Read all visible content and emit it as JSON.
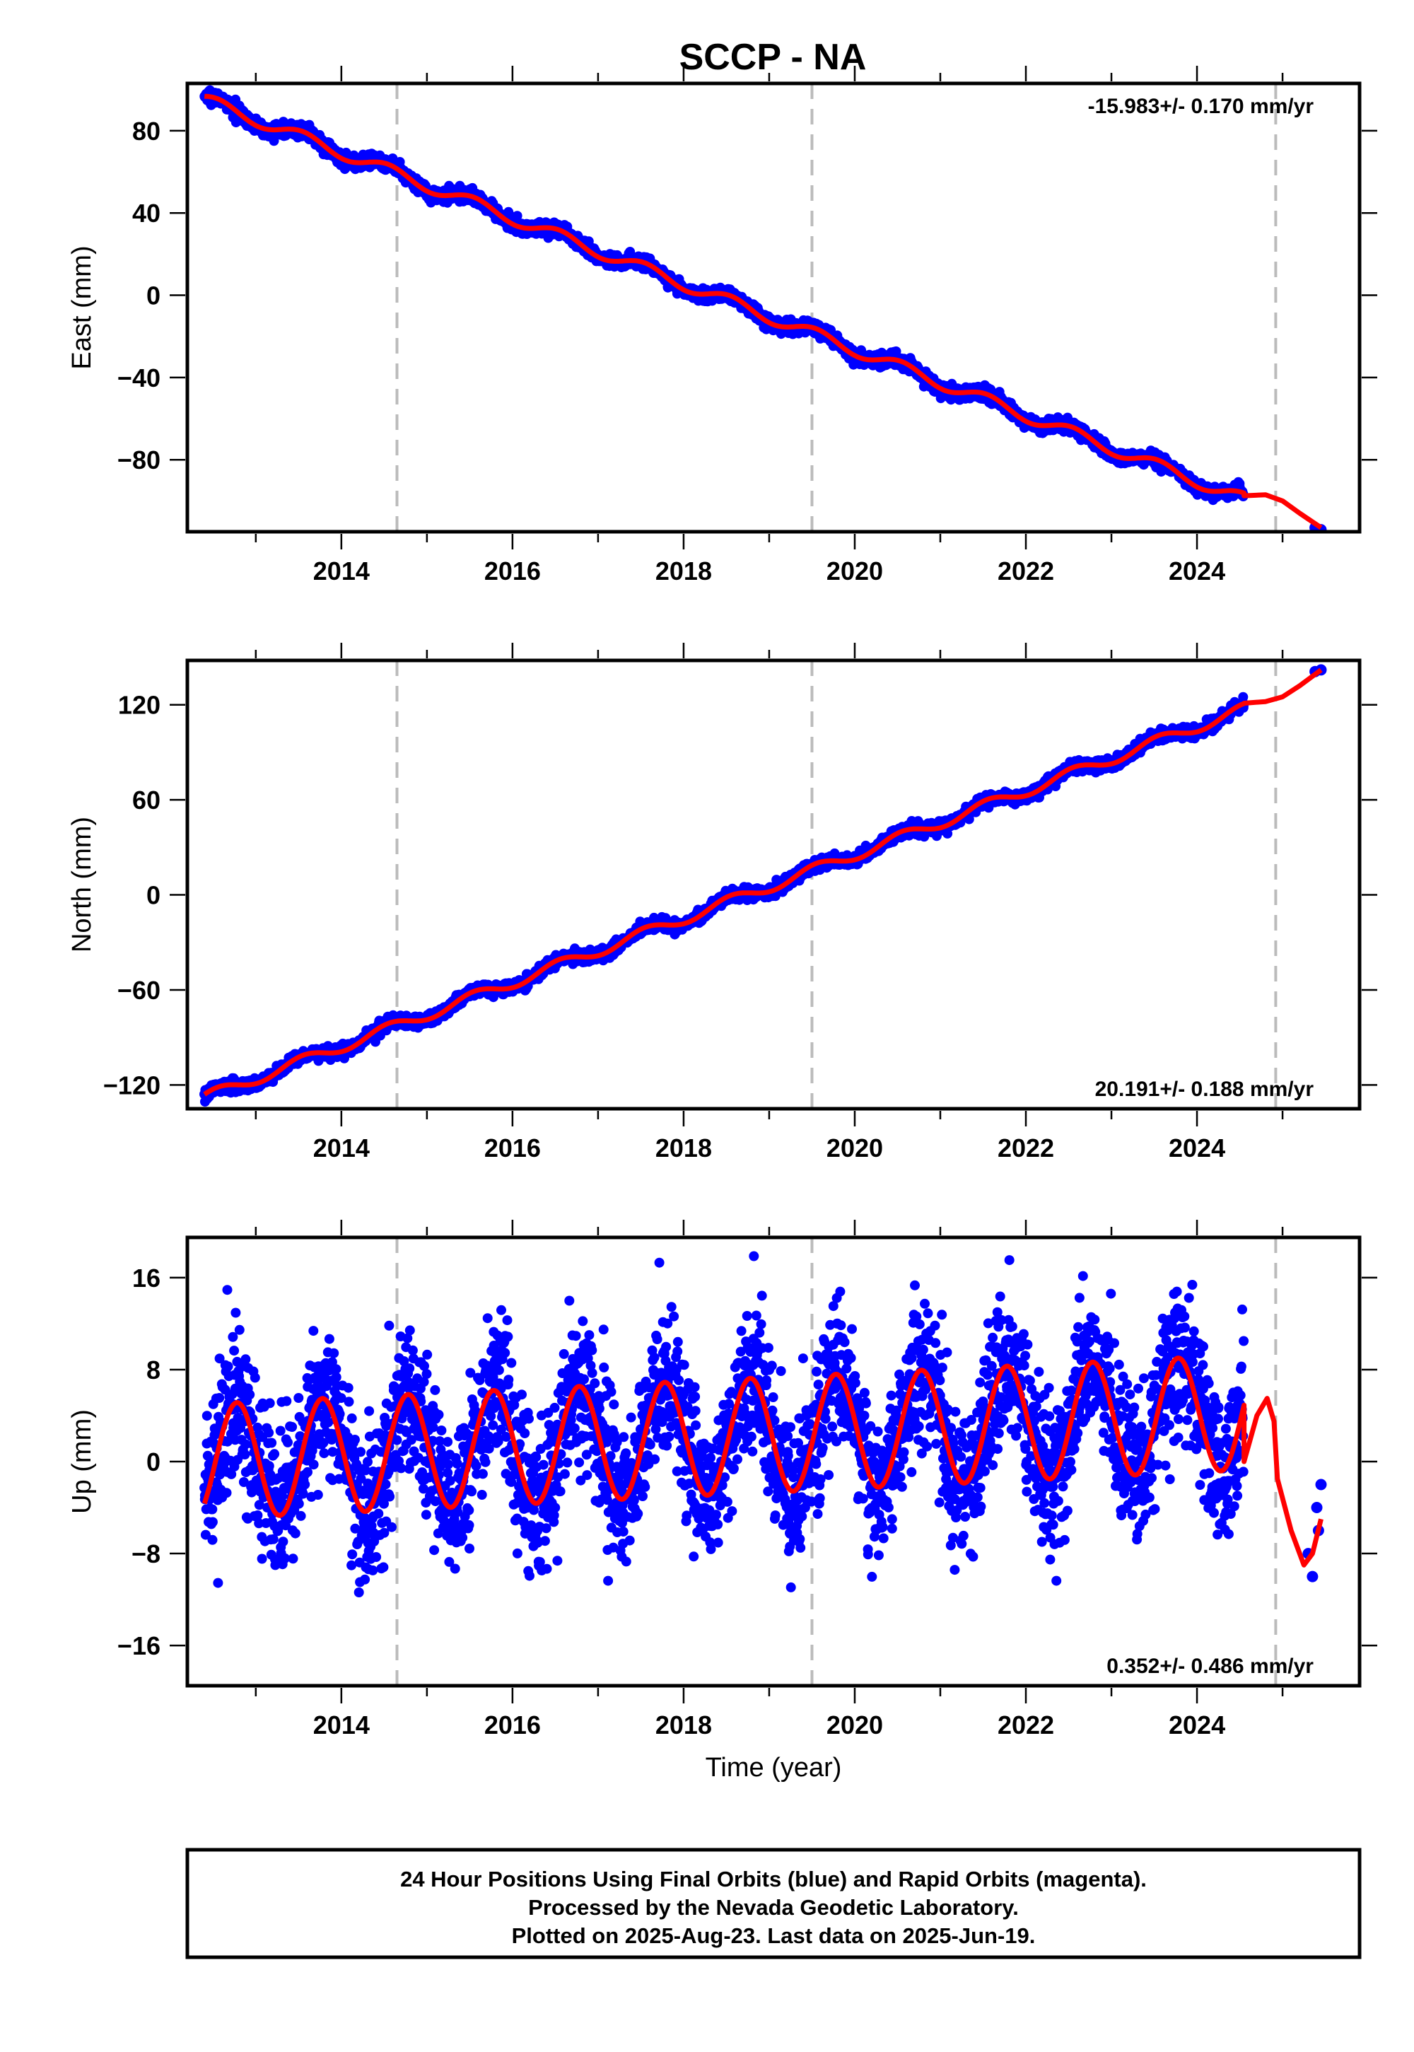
{
  "title": "SCCP - NA",
  "colors": {
    "final_orbits": "#0000ff",
    "model": "#ff0000",
    "breaks": "#bbbbbb"
  },
  "footer": {
    "line1": "24 Hour Positions Using Final Orbits (blue) and Rapid Orbits (magenta).",
    "line2": "Processed by the Nevada Geodetic Laboratory.",
    "line3": "Plotted on 2025-Aug-23. Last data on 2025-Jun-19."
  },
  "chart_data": [
    {
      "type": "scatter",
      "ylabel": "East (mm)",
      "xlabel": "",
      "rate_label": "-15.983+/- 0.170 mm/yr",
      "rate_position": "top-right",
      "xlim": [
        2012.2,
        2025.9
      ],
      "ylim": [
        -115,
        103
      ],
      "xticks": [
        2014,
        2016,
        2018,
        2020,
        2022,
        2024
      ],
      "yticks": [
        80,
        40,
        0,
        -40,
        -80
      ],
      "ytick_labels": [
        "80",
        "40",
        "0",
        "−40",
        "−80"
      ],
      "breaks": [
        2014.65,
        2019.5,
        2024.92
      ],
      "data_start": 2012.4,
      "data_end": 2024.55,
      "late_points": [
        [
          2025.38,
          -113
        ],
        [
          2025.45,
          -114
        ]
      ],
      "trend": {
        "intercept_at": [
          2012.4,
          95
        ],
        "slope": -15.983
      },
      "seasonal_amplitude": 3,
      "scatter_sigma": 1.6,
      "model_extension": [
        [
          2024.55,
          -97.5
        ],
        [
          2024.8,
          -97
        ],
        [
          2025.0,
          -100
        ],
        [
          2025.2,
          -106
        ],
        [
          2025.45,
          -113
        ]
      ]
    },
    {
      "type": "scatter",
      "ylabel": "North (mm)",
      "xlabel": "",
      "rate_label": "20.191+/- 0.188 mm/yr",
      "rate_position": "bottom-right",
      "xlim": [
        2012.2,
        2025.9
      ],
      "ylim": [
        -135,
        148
      ],
      "xticks": [
        2014,
        2016,
        2018,
        2020,
        2022,
        2024
      ],
      "yticks": [
        120,
        60,
        0,
        -60,
        -120
      ],
      "ytick_labels": [
        "120",
        "60",
        "0",
        "−60",
        "−120"
      ],
      "breaks": [
        2014.65,
        2019.5,
        2024.92
      ],
      "data_start": 2012.4,
      "data_end": 2024.55,
      "late_points": [
        [
          2025.38,
          141
        ],
        [
          2025.45,
          142
        ]
      ],
      "trend": {
        "intercept_at": [
          2012.4,
          -128
        ],
        "slope": 20.191
      },
      "seasonal_amplitude": 3.5,
      "scatter_sigma": 1.8,
      "model_extension": [
        [
          2024.55,
          121
        ],
        [
          2024.8,
          122
        ],
        [
          2025.0,
          125
        ],
        [
          2025.2,
          132
        ],
        [
          2025.45,
          142
        ]
      ]
    },
    {
      "type": "scatter",
      "ylabel": "Up (mm)",
      "xlabel": "Time (year)",
      "rate_label": "0.352+/- 0.486 mm/yr",
      "rate_position": "bottom-right",
      "xlim": [
        2012.2,
        2025.9
      ],
      "ylim": [
        -19.5,
        19.5
      ],
      "xticks": [
        2014,
        2016,
        2018,
        2020,
        2022,
        2024
      ],
      "yticks": [
        16,
        8,
        0,
        -8,
        -16
      ],
      "ytick_labels": [
        "16",
        "8",
        "0",
        "−8",
        "−16"
      ],
      "breaks": [
        2014.65,
        2019.5,
        2024.92
      ],
      "data_start": 2012.4,
      "data_end": 2024.55,
      "late_points": [
        [
          2025.3,
          -8
        ],
        [
          2025.35,
          -10
        ],
        [
          2025.4,
          -4
        ],
        [
          2025.45,
          -2
        ],
        [
          2025.42,
          -6
        ]
      ],
      "trend": {
        "intercept_at": [
          2012.4,
          0
        ],
        "slope": 0.352
      },
      "seasonal_amplitude": 5,
      "seasonal_peak_fraction": 0.78,
      "scatter_sigma": 3.2,
      "model_extension": [
        [
          2024.55,
          0
        ],
        [
          2024.7,
          4
        ],
        [
          2024.82,
          5.5
        ],
        [
          2024.9,
          3.5
        ],
        [
          2024.94,
          -1.5
        ],
        [
          2025.1,
          -6
        ],
        [
          2025.25,
          -9
        ],
        [
          2025.35,
          -8
        ],
        [
          2025.45,
          -5
        ]
      ]
    }
  ]
}
